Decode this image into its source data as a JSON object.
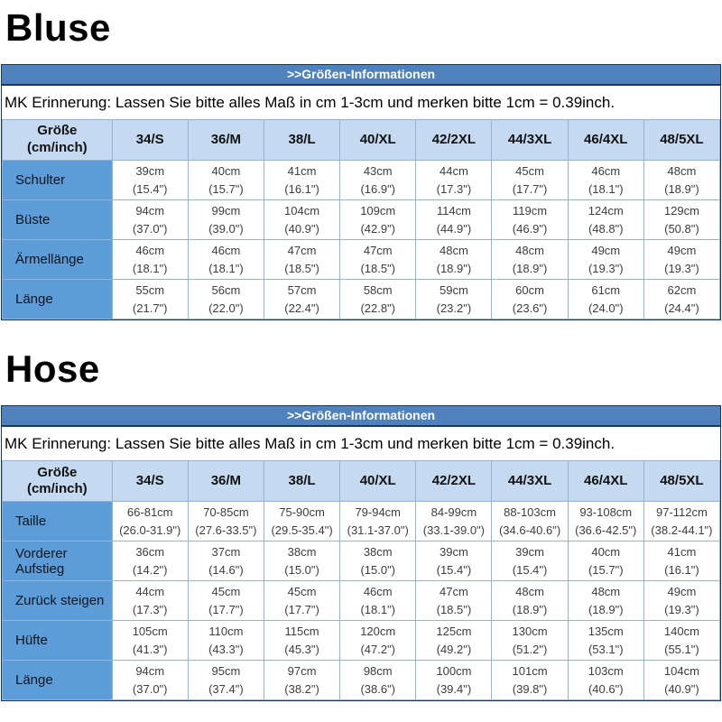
{
  "colors": {
    "banner_bg": "#4F81BD",
    "banner_text": "#FFFFFF",
    "header_row_bg": "#C5D9F1",
    "label_col_bg": "#5B9CD9",
    "grid_border": "#95B3D7",
    "outer_border": "#17375E",
    "value_text": "#3D3D3D",
    "title_text": "#000000"
  },
  "sections": [
    {
      "title": "Bluse",
      "banner": ">>Größen-Informationen",
      "reminder": "MK Erinnerung: Lassen Sie bitte alles Maß in cm 1-3cm und merken bitte 1cm = 0.39inch.",
      "corner": [
        "Größe",
        "(cm/inch)"
      ],
      "size_headers": [
        "34/S",
        "36/M",
        "38/L",
        "40/XL",
        "42/2XL",
        "44/3XL",
        "46/4XL",
        "48/5XL"
      ],
      "rows": [
        {
          "label": "Schulter",
          "cm": [
            "39cm",
            "40cm",
            "41cm",
            "43cm",
            "44cm",
            "45cm",
            "46cm",
            "48cm"
          ],
          "inch": [
            "(15.4\")",
            "(15.7\")",
            "(16.1\")",
            "(16.9\")",
            "(17.3\")",
            "(17.7\")",
            "(18.1\")",
            "(18.9\")"
          ]
        },
        {
          "label": "Büste",
          "cm": [
            "94cm",
            "99cm",
            "104cm",
            "109cm",
            "114cm",
            "119cm",
            "124cm",
            "129cm"
          ],
          "inch": [
            "(37.0\")",
            "(39.0\")",
            "(40.9\")",
            "(42.9\")",
            "(44.9\")",
            "(46.9\")",
            "(48.8\")",
            "(50.8\")"
          ]
        },
        {
          "label": "Ärmellänge",
          "cm": [
            "46cm",
            "46cm",
            "47cm",
            "47cm",
            "48cm",
            "48cm",
            "49cm",
            "49cm"
          ],
          "inch": [
            "(18.1\")",
            "(18.1\")",
            "(18.5\")",
            "(18.5\")",
            "(18.9\")",
            "(18.9\")",
            "(19.3\")",
            "(19.3\")"
          ]
        },
        {
          "label": "Länge",
          "cm": [
            "55cm",
            "56cm",
            "57cm",
            "58cm",
            "59cm",
            "60cm",
            "61cm",
            "62cm"
          ],
          "inch": [
            "(21.7\")",
            "(22.0\")",
            "(22.4\")",
            "(22.8\")",
            "(23.2\")",
            "(23.6\")",
            "(24.0\")",
            "(24.4\")"
          ]
        }
      ]
    },
    {
      "title": "Hose",
      "banner": ">>Größen-Informationen",
      "reminder": "MK Erinnerung: Lassen Sie bitte alles Maß in cm 1-3cm und merken bitte 1cm = 0.39inch.",
      "corner": [
        "Größe",
        "(cm/inch)"
      ],
      "size_headers": [
        "34/S",
        "36/M",
        "38/L",
        "40/XL",
        "42/2XL",
        "44/3XL",
        "46/4XL",
        "48/5XL"
      ],
      "rows": [
        {
          "label": "Taille",
          "cm": [
            "66-81cm",
            "70-85cm",
            "75-90cm",
            "79-94cm",
            "84-99cm",
            "88-103cm",
            "93-108cm",
            "97-112cm"
          ],
          "inch": [
            "(26.0-31.9\")",
            "(27.6-33.5\")",
            "(29.5-35.4\")",
            "(31.1-37.0\")",
            "(33.1-39.0\")",
            "(34.6-40.6\")",
            "(36.6-42.5\")",
            "(38.2-44.1\")"
          ]
        },
        {
          "label": "Vorderer Aufstieg",
          "cm": [
            "36cm",
            "37cm",
            "38cm",
            "38cm",
            "39cm",
            "39cm",
            "40cm",
            "41cm"
          ],
          "inch": [
            "(14.2\")",
            "(14.6\")",
            "(15.0\")",
            "(15.0\")",
            "(15.4\")",
            "(15.4\")",
            "(15.7\")",
            "(16.1\")"
          ]
        },
        {
          "label": "Zurück steigen",
          "cm": [
            "44cm",
            "45cm",
            "45cm",
            "46cm",
            "47cm",
            "48cm",
            "48cm",
            "49cm"
          ],
          "inch": [
            "(17.3\")",
            "(17.7\")",
            "(17.7\")",
            "(18.1\")",
            "(18.5\")",
            "(18.9\")",
            "(18.9\")",
            "(19.3\")"
          ]
        },
        {
          "label": "Hüfte",
          "cm": [
            "105cm",
            "110cm",
            "115cm",
            "120cm",
            "125cm",
            "130cm",
            "135cm",
            "140cm"
          ],
          "inch": [
            "(41.3\")",
            "(43.3\")",
            "(45.3\")",
            "(47.2\")",
            "(49.2\")",
            "(51.2\")",
            "(53.1\")",
            "(55.1\")"
          ]
        },
        {
          "label": "Länge",
          "cm": [
            "94cm",
            "95cm",
            "97cm",
            "98cm",
            "100cm",
            "101cm",
            "103cm",
            "104cm"
          ],
          "inch": [
            "(37.0\")",
            "(37.4\")",
            "(38.2\")",
            "(38.6\")",
            "(39.4\")",
            "(39.8\")",
            "(40.6\")",
            "(40.9\")"
          ]
        }
      ]
    }
  ]
}
